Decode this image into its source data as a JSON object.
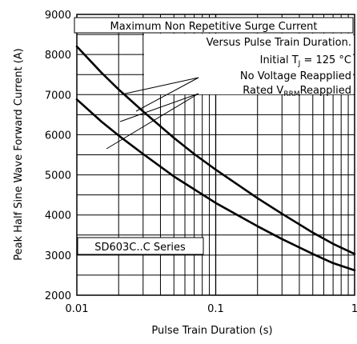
{
  "chart_data": {
    "type": "line",
    "title": "",
    "xlabel": "Pulse Train Duration (s)",
    "ylabel": "Peak Half Sine Wave Forward Current (A)",
    "x_scale": "log",
    "xlim": [
      0.01,
      1
    ],
    "ylim": [
      2000,
      9000
    ],
    "grid": true,
    "x_tick_labels": [
      "0.01",
      "0.1",
      "1"
    ],
    "y_ticks": [
      2000,
      3000,
      4000,
      5000,
      6000,
      7000,
      8000,
      9000
    ],
    "y_tick_labels": [
      "2000",
      "3000",
      "4000",
      "5000",
      "6000",
      "7000",
      "8000",
      "9000"
    ],
    "annotations": {
      "title_line1": "Maximum Non Repetitive Surge Current",
      "title_line2": "Versus Pulse Train Duration.",
      "condition_prefix": "Initial T",
      "condition_sub": "J",
      "condition_suffix": " = 125 °C",
      "label_no_voltage": "No Voltage Reapplied",
      "label_rated_prefix": "Rated V",
      "label_rated_sub": "RRM",
      "label_rated_suffix": "Reapplied",
      "series_box": "SD603C..C Series"
    },
    "series": [
      {
        "x": [
          0.01,
          0.015,
          0.02,
          0.03,
          0.05,
          0.07,
          0.1,
          0.2,
          0.3,
          0.5,
          0.7,
          1.0
        ],
        "values": [
          8200,
          7550,
          7130,
          6580,
          5920,
          5520,
          5130,
          4420,
          4030,
          3560,
          3280,
          3030
        ]
      },
      {
        "x": [
          0.01,
          0.015,
          0.02,
          0.03,
          0.05,
          0.07,
          0.1,
          0.2,
          0.3,
          0.5,
          0.7,
          1.0
        ],
        "values": [
          6880,
          6330,
          5980,
          5520,
          4960,
          4640,
          4300,
          3720,
          3400,
          3030,
          2800,
          2620
        ]
      }
    ]
  }
}
